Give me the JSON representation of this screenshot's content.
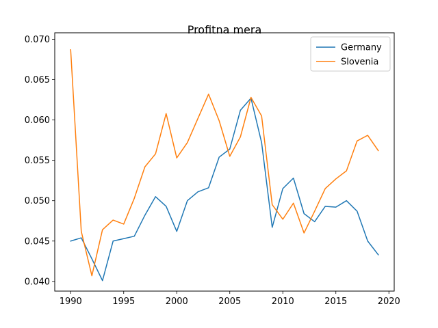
{
  "chart_data": {
    "type": "line",
    "title": "Profitna mera",
    "xlabel": "",
    "ylabel": "",
    "xlim": [
      1988.5,
      2020.5
    ],
    "ylim": [
      0.0388,
      0.0708
    ],
    "xticks": [
      1990,
      1995,
      2000,
      2005,
      2010,
      2015,
      2020
    ],
    "xtick_labels": [
      "1990",
      "1995",
      "2000",
      "2005",
      "2010",
      "2015",
      "2020"
    ],
    "yticks": [
      0.04,
      0.045,
      0.05,
      0.055,
      0.06,
      0.065,
      0.07
    ],
    "ytick_labels": [
      "0.040",
      "0.045",
      "0.050",
      "0.055",
      "0.060",
      "0.065",
      "0.070"
    ],
    "grid": false,
    "legend_position": "top-right",
    "x": [
      1990,
      1991,
      1992,
      1993,
      1994,
      1995,
      1996,
      1997,
      1998,
      1999,
      2000,
      2001,
      2002,
      2003,
      2004,
      2005,
      2006,
      2007,
      2008,
      2009,
      2010,
      2011,
      2012,
      2013,
      2014,
      2015,
      2016,
      2017,
      2018,
      2019
    ],
    "series": [
      {
        "name": "Germany",
        "color": "#1f77b4",
        "values": [
          0.045,
          0.0454,
          0.0428,
          0.0401,
          0.045,
          0.0453,
          0.0456,
          0.0482,
          0.0505,
          0.0493,
          0.0462,
          0.05,
          0.0511,
          0.0516,
          0.0554,
          0.0564,
          0.0612,
          0.0627,
          0.0572,
          0.0467,
          0.0515,
          0.0528,
          0.0484,
          0.0474,
          0.0493,
          0.0492,
          0.05,
          0.0487,
          0.045,
          0.0433
        ]
      },
      {
        "name": "Slovenia",
        "color": "#ff7f0e",
        "values": [
          0.0687,
          0.0462,
          0.0407,
          0.0464,
          0.0476,
          0.0471,
          0.0503,
          0.0542,
          0.0558,
          0.0608,
          0.0553,
          0.0572,
          0.0602,
          0.0632,
          0.0599,
          0.0555,
          0.0579,
          0.0628,
          0.0605,
          0.0495,
          0.0477,
          0.0497,
          0.046,
          0.0487,
          0.0515,
          0.0527,
          0.0537,
          0.0574,
          0.0581,
          0.0562
        ]
      }
    ]
  }
}
